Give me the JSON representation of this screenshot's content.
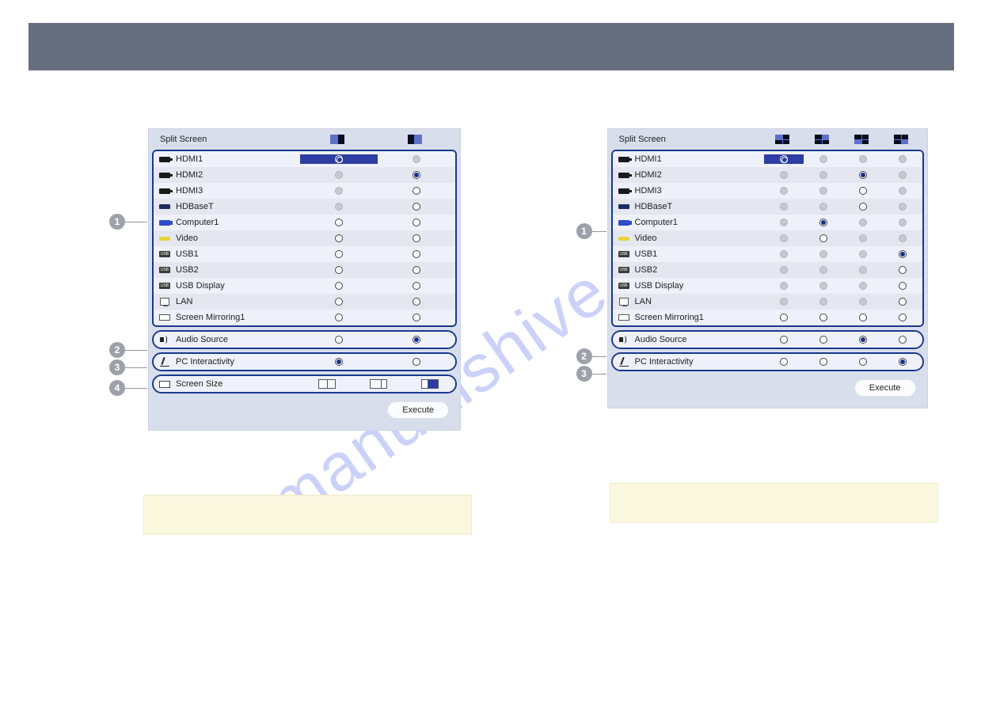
{
  "leftPanel": {
    "title": "Split Screen",
    "columns": 2,
    "sources": [
      {
        "label": "HDMI1",
        "icon": "hdmi",
        "cells": [
          {
            "state": "hl"
          },
          {
            "state": "disabled"
          }
        ]
      },
      {
        "label": "HDMI2",
        "icon": "hdmi",
        "cells": [
          {
            "state": "disabled"
          },
          {
            "state": "selected"
          }
        ]
      },
      {
        "label": "HDMI3",
        "icon": "hdmi",
        "cells": [
          {
            "state": "disabled"
          },
          {
            "state": "open"
          }
        ]
      },
      {
        "label": "HDBaseT",
        "icon": "hdbaset",
        "cells": [
          {
            "state": "disabled"
          },
          {
            "state": "open"
          }
        ]
      },
      {
        "label": "Computer1",
        "icon": "comp",
        "cells": [
          {
            "state": "open"
          },
          {
            "state": "open"
          }
        ]
      },
      {
        "label": "Video",
        "icon": "video",
        "cells": [
          {
            "state": "open"
          },
          {
            "state": "open"
          }
        ]
      },
      {
        "label": "USB1",
        "icon": "usb",
        "cells": [
          {
            "state": "open"
          },
          {
            "state": "open"
          }
        ]
      },
      {
        "label": "USB2",
        "icon": "usb",
        "cells": [
          {
            "state": "open"
          },
          {
            "state": "open"
          }
        ]
      },
      {
        "label": "USB Display",
        "icon": "usb",
        "cells": [
          {
            "state": "open"
          },
          {
            "state": "open"
          }
        ]
      },
      {
        "label": "LAN",
        "icon": "lan",
        "cells": [
          {
            "state": "open"
          },
          {
            "state": "open"
          }
        ]
      },
      {
        "label": "Screen Mirroring1",
        "icon": "mirror",
        "cells": [
          {
            "state": "open"
          },
          {
            "state": "open"
          }
        ]
      }
    ],
    "audio": {
      "label": "Audio Source",
      "cells": [
        {
          "state": "open"
        },
        {
          "state": "selected"
        }
      ]
    },
    "pc": {
      "label": "PC Interactivity",
      "cells": [
        {
          "state": "selected"
        },
        {
          "state": "open"
        }
      ]
    },
    "screen": {
      "label": "Screen Size"
    },
    "execute": "Execute"
  },
  "rightPanel": {
    "title": "Split Screen",
    "columns": 4,
    "sources": [
      {
        "label": "HDMI1",
        "icon": "hdmi",
        "cells": [
          {
            "state": "hl"
          },
          {
            "state": "disabled"
          },
          {
            "state": "disabled"
          },
          {
            "state": "disabled"
          }
        ]
      },
      {
        "label": "HDMI2",
        "icon": "hdmi",
        "cells": [
          {
            "state": "disabled"
          },
          {
            "state": "disabled"
          },
          {
            "state": "selected"
          },
          {
            "state": "disabled"
          }
        ]
      },
      {
        "label": "HDMI3",
        "icon": "hdmi",
        "cells": [
          {
            "state": "disabled"
          },
          {
            "state": "disabled"
          },
          {
            "state": "open"
          },
          {
            "state": "disabled"
          }
        ]
      },
      {
        "label": "HDBaseT",
        "icon": "hdbaset",
        "cells": [
          {
            "state": "disabled"
          },
          {
            "state": "disabled"
          },
          {
            "state": "open"
          },
          {
            "state": "disabled"
          }
        ]
      },
      {
        "label": "Computer1",
        "icon": "comp",
        "cells": [
          {
            "state": "disabled"
          },
          {
            "state": "selected"
          },
          {
            "state": "disabled"
          },
          {
            "state": "disabled"
          }
        ]
      },
      {
        "label": "Video",
        "icon": "video",
        "cells": [
          {
            "state": "disabled"
          },
          {
            "state": "open"
          },
          {
            "state": "disabled"
          },
          {
            "state": "disabled"
          }
        ]
      },
      {
        "label": "USB1",
        "icon": "usb",
        "cells": [
          {
            "state": "disabled"
          },
          {
            "state": "disabled"
          },
          {
            "state": "disabled"
          },
          {
            "state": "selected"
          }
        ]
      },
      {
        "label": "USB2",
        "icon": "usb",
        "cells": [
          {
            "state": "disabled"
          },
          {
            "state": "disabled"
          },
          {
            "state": "disabled"
          },
          {
            "state": "open"
          }
        ]
      },
      {
        "label": "USB Display",
        "icon": "usb",
        "cells": [
          {
            "state": "disabled"
          },
          {
            "state": "disabled"
          },
          {
            "state": "disabled"
          },
          {
            "state": "open"
          }
        ]
      },
      {
        "label": "LAN",
        "icon": "lan",
        "cells": [
          {
            "state": "disabled"
          },
          {
            "state": "disabled"
          },
          {
            "state": "disabled"
          },
          {
            "state": "open"
          }
        ]
      },
      {
        "label": "Screen Mirroring1",
        "icon": "mirror",
        "cells": [
          {
            "state": "open"
          },
          {
            "state": "open"
          },
          {
            "state": "open"
          },
          {
            "state": "open"
          }
        ]
      }
    ],
    "audio": {
      "label": "Audio Source",
      "cells": [
        {
          "state": "open"
        },
        {
          "state": "open"
        },
        {
          "state": "selected"
        },
        {
          "state": "open"
        }
      ]
    },
    "pc": {
      "label": "PC Interactivity",
      "cells": [
        {
          "state": "open"
        },
        {
          "state": "open"
        },
        {
          "state": "open"
        },
        {
          "state": "selected"
        }
      ]
    },
    "execute": "Execute"
  },
  "callouts": {
    "c1": "1",
    "c2": "2",
    "c3": "3",
    "c4": "4"
  },
  "watermark": "manualshive.com"
}
